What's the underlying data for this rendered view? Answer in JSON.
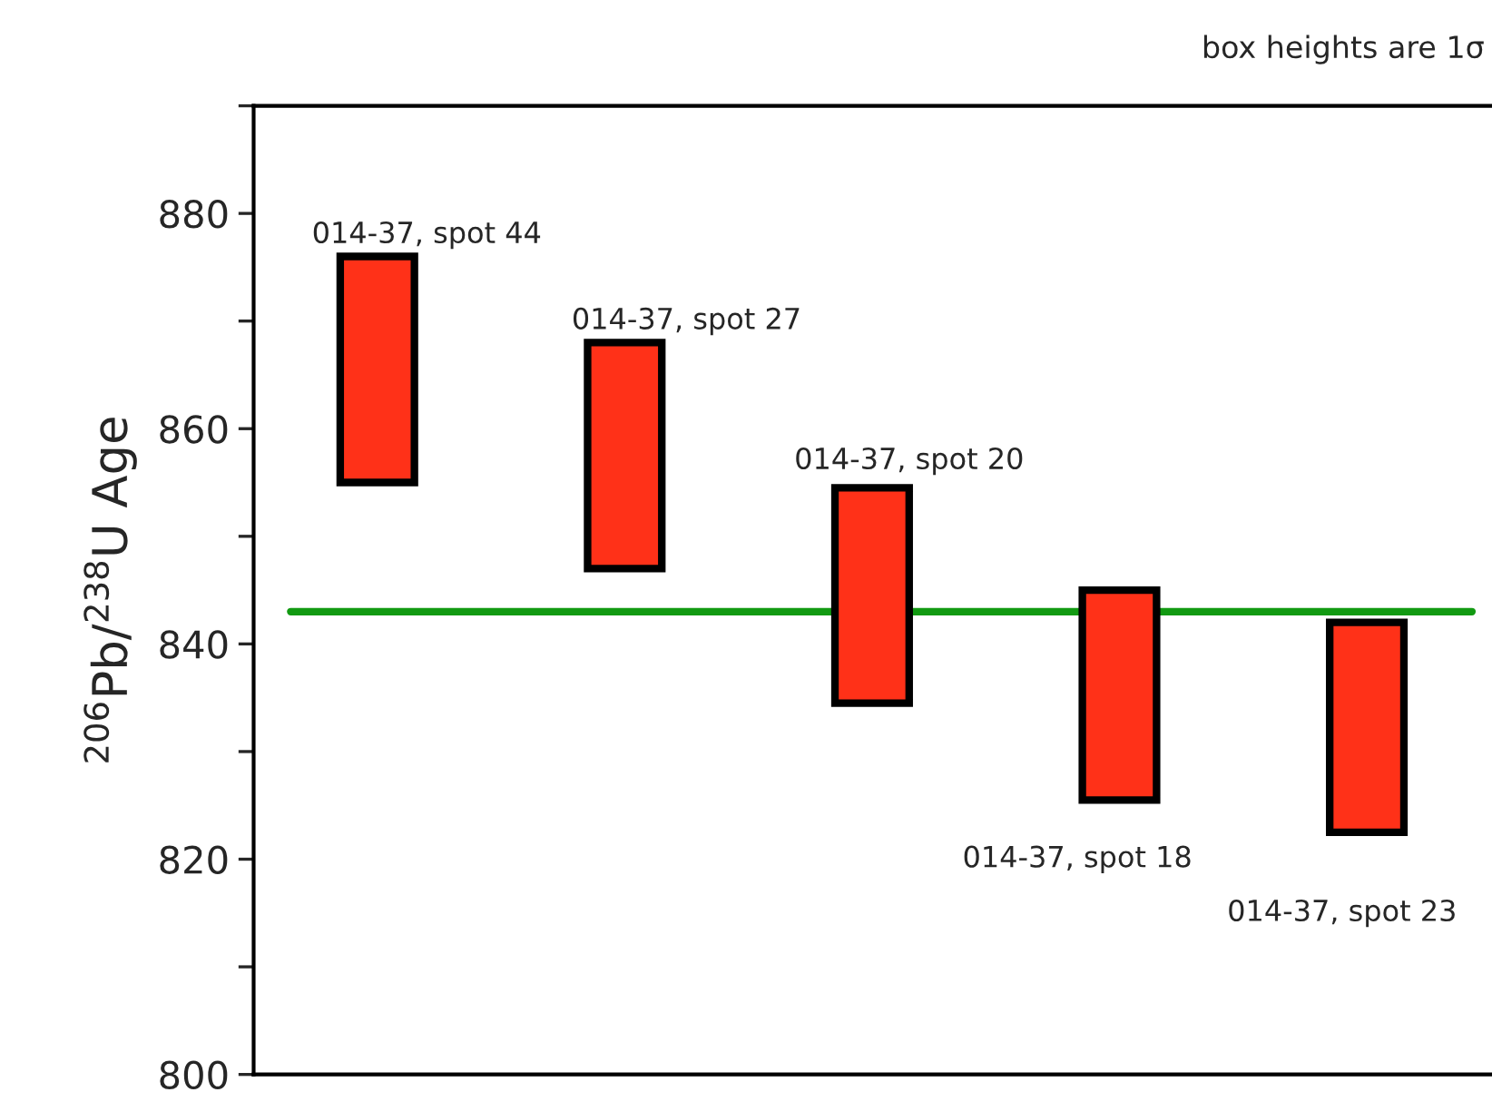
{
  "chart_data": {
    "type": "bar",
    "categories": [
      null,
      null,
      null,
      null,
      null
    ],
    "base": [
      855,
      847,
      834.5,
      825.5,
      822.5
    ],
    "values": [
      21,
      21,
      20,
      19.5,
      19.5
    ],
    "color": "#ff3118",
    "ylabel": "$^{206}$Pb/$^{238}$U Age",
    "ylim": [
      800,
      890
    ],
    "yticks": [
      800,
      {
        "value": 810,
        "label": null
      },
      820,
      {
        "value": 830,
        "label": null
      },
      840,
      {
        "value": 850,
        "label": null
      },
      860,
      {
        "value": 870,
        "label": null
      },
      880,
      {
        "value": 890,
        "label": null
      }
    ],
    "ref_lines": [
      {
        "axis": "y",
        "value": 843,
        "color": "#129a12"
      }
    ],
    "annotations": [
      "014-37, spot 44",
      "014-37, spot 27",
      "014-37, spot 20",
      "014-37, spot 18",
      "014-37, spot 23",
      "box heights are 1σ"
    ],
    "grid": false,
    "legend": false
  }
}
